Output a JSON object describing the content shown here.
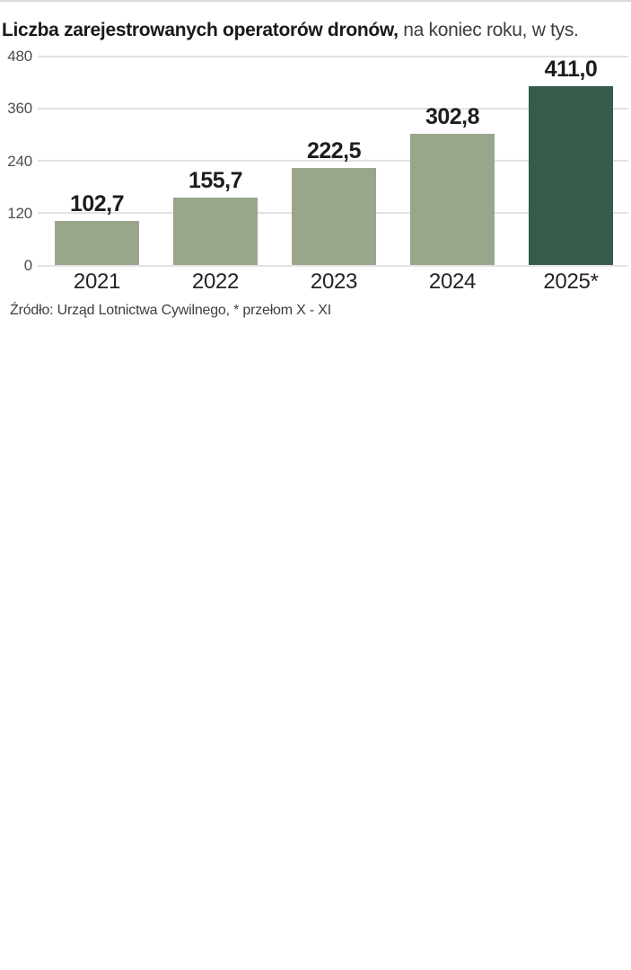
{
  "title": {
    "bold": "Liczba zarejestrowanych operatorów dronów,",
    "regular": " na koniec roku, w tys."
  },
  "source": {
    "text": "Źródło: Urząd Lotnictwa Cywilnego, * przełom X - XI"
  },
  "chart_data": {
    "type": "bar",
    "title": "Liczba zarejestrowanych operatorów dronów, na koniec roku, w tys.",
    "categories": [
      "2021",
      "2022",
      "2023",
      "2024",
      "2025*"
    ],
    "values": [
      102.7,
      155.7,
      222.5,
      302.8,
      411.0
    ],
    "value_labels": [
      "102,7",
      "155,7",
      "222,5",
      "302,8",
      "411,0"
    ],
    "xlabel": "",
    "ylabel": "",
    "yticks": [
      0,
      120,
      240,
      360,
      480
    ],
    "ylim": [
      0,
      480
    ],
    "grid": "horizontal",
    "legend": "none",
    "bar_color": "#99a68c",
    "highlight_color": "#375b49",
    "highlight_index": 4,
    "source": "Źródło: Urząd Lotnictwa Cywilnego, * przełom X - XI"
  }
}
